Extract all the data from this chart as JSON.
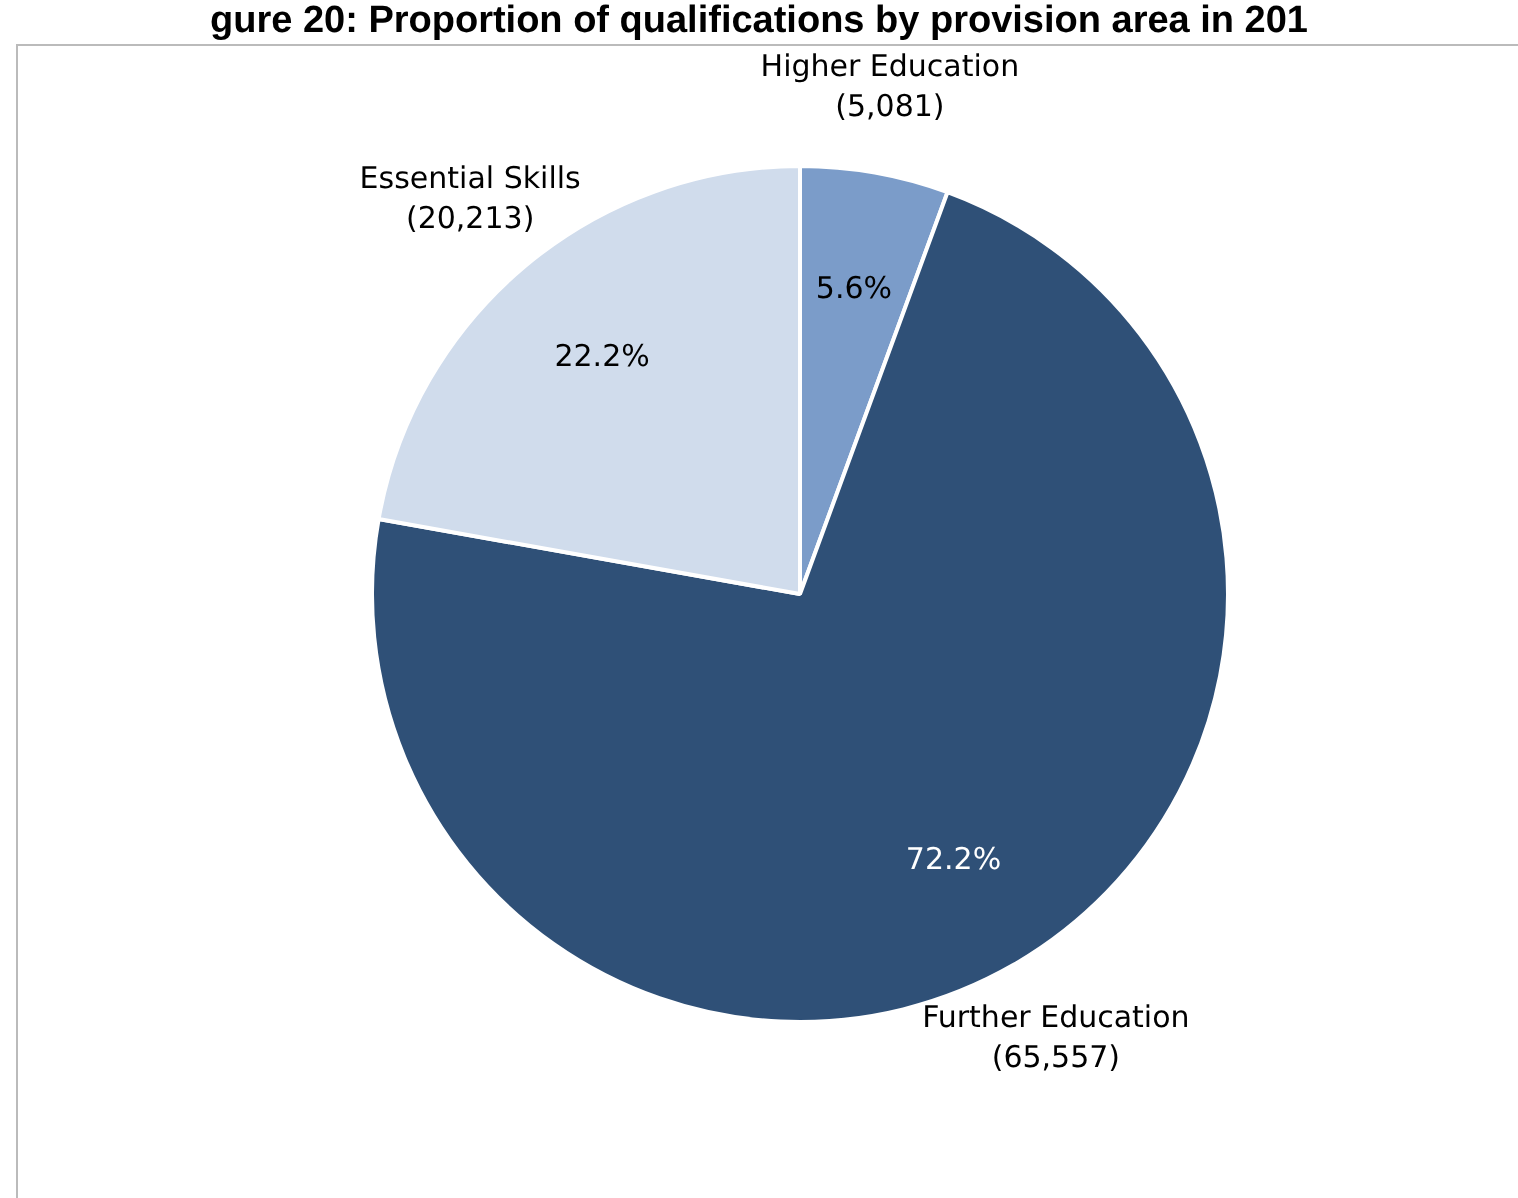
{
  "chart_data": {
    "type": "pie",
    "title": "gure 20: Proportion of qualifications by provision area in 201",
    "categories": [
      "Higher Education (5,081)",
      "Further Education (65,557)",
      "Essential Skills (20,213)"
    ],
    "values": [
      5.6,
      72.2,
      22.2
    ],
    "colors": [
      "#7b9cc9",
      "#2f5077",
      "#d0dcec"
    ],
    "value_labels": [
      "5.6%",
      "72.2%",
      "22.2%"
    ],
    "legend": false
  }
}
